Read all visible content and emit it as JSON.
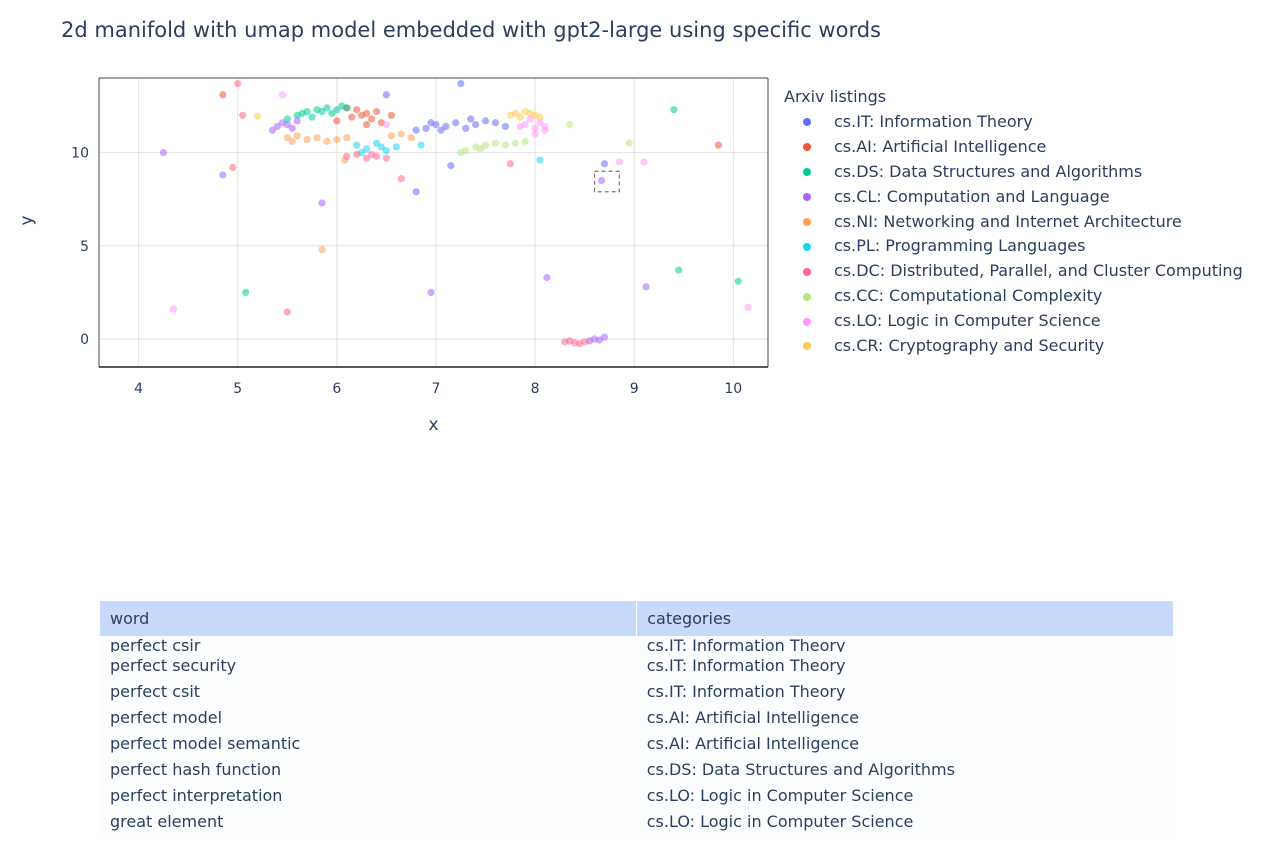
{
  "title": "2d manifold with umap model embedded with gpt2-large using specific words",
  "legend": {
    "title": "Arxiv listings",
    "items": [
      {
        "label": "cs.IT: Information Theory",
        "color": "#636efa"
      },
      {
        "label": "cs.AI: Artificial Intelligence",
        "color": "#ef553b"
      },
      {
        "label": "cs.DS: Data Structures and Algorithms",
        "color": "#00cc96"
      },
      {
        "label": "cs.CL: Computation and Language",
        "color": "#ab63fa"
      },
      {
        "label": "cs.NI: Networking and Internet Architecture",
        "color": "#ffa15a"
      },
      {
        "label": "cs.PL: Programming Languages",
        "color": "#19d3f3"
      },
      {
        "label": "cs.DC: Distributed, Parallel, and Cluster Computing",
        "color": "#ff6692"
      },
      {
        "label": "cs.CC: Computational Complexity",
        "color": "#b6e880"
      },
      {
        "label": "cs.LO: Logic in Computer Science",
        "color": "#ff97ff"
      },
      {
        "label": "cs.CR: Cryptography and Security",
        "color": "#fecb52"
      }
    ]
  },
  "table": {
    "headers": [
      "word",
      "categories"
    ],
    "rows": [
      [
        "perfect csir",
        "cs.IT: Information Theory"
      ],
      [
        "perfect security",
        "cs.IT: Information Theory"
      ],
      [
        "perfect csit",
        "cs.IT: Information Theory"
      ],
      [
        "perfect model",
        "cs.AI: Artificial Intelligence"
      ],
      [
        "perfect model semantic",
        "cs.AI: Artificial Intelligence"
      ],
      [
        "perfect hash function",
        "cs.DS: Data Structures and Algorithms"
      ],
      [
        "perfect interpretation",
        "cs.LO: Logic in Computer Science"
      ],
      [
        "great element",
        "cs.LO: Logic in Computer Science"
      ]
    ]
  },
  "chart_data": {
    "type": "scatter",
    "title": "2d manifold with umap model embedded with gpt2-large using specific words",
    "xlabel": "x",
    "ylabel": "y",
    "xlim": [
      3.6,
      10.35
    ],
    "ylim": [
      -1.5,
      14
    ],
    "xticks": [
      4,
      5,
      6,
      7,
      8,
      9,
      10
    ],
    "yticks": [
      0,
      5,
      10
    ],
    "grid": true,
    "legend_position": "right",
    "selection_box": {
      "x": [
        8.6,
        8.85
      ],
      "y": [
        7.9,
        9.0
      ]
    },
    "series": [
      {
        "name": "cs.IT: Information Theory",
        "color": "#636efa",
        "points": [
          [
            6.9,
            11.3
          ],
          [
            7.0,
            11.5
          ],
          [
            7.1,
            11.4
          ],
          [
            7.2,
            11.6
          ],
          [
            7.3,
            11.3
          ],
          [
            7.4,
            11.5
          ],
          [
            7.5,
            11.7
          ],
          [
            7.6,
            11.6
          ],
          [
            6.8,
            11.2
          ],
          [
            7.7,
            11.4
          ],
          [
            6.5,
            13.1
          ],
          [
            7.25,
            13.7
          ],
          [
            7.15,
            9.3
          ],
          [
            6.95,
            11.6
          ],
          [
            8.7,
            9.4
          ],
          [
            6.8,
            7.9
          ],
          [
            7.35,
            11.8
          ],
          [
            7.05,
            11.2
          ]
        ]
      },
      {
        "name": "cs.AI: Artificial Intelligence",
        "color": "#ef553b",
        "points": [
          [
            6.2,
            12.3
          ],
          [
            6.3,
            12.1
          ],
          [
            6.35,
            11.8
          ],
          [
            6.25,
            12.0
          ],
          [
            6.4,
            12.2
          ],
          [
            6.45,
            11.6
          ],
          [
            6.1,
            12.4
          ],
          [
            6.15,
            11.9
          ],
          [
            6.3,
            11.5
          ],
          [
            9.85,
            10.4
          ],
          [
            4.85,
            13.1
          ],
          [
            6.55,
            12.0
          ],
          [
            6.0,
            11.7
          ]
        ]
      },
      {
        "name": "cs.DS: Data Structures and Algorithms",
        "color": "#00cc96",
        "points": [
          [
            5.6,
            12.0
          ],
          [
            5.7,
            12.2
          ],
          [
            5.8,
            12.3
          ],
          [
            5.9,
            12.4
          ],
          [
            6.0,
            12.3
          ],
          [
            6.1,
            12.4
          ],
          [
            5.5,
            11.8
          ],
          [
            5.65,
            12.1
          ],
          [
            5.85,
            12.2
          ],
          [
            6.05,
            12.5
          ],
          [
            9.4,
            12.3
          ],
          [
            9.45,
            3.7
          ],
          [
            10.05,
            3.1
          ],
          [
            5.08,
            2.5
          ],
          [
            5.75,
            11.9
          ],
          [
            5.95,
            12.1
          ]
        ]
      },
      {
        "name": "cs.CL: Computation and Language",
        "color": "#ab63fa",
        "points": [
          [
            5.35,
            11.2
          ],
          [
            5.4,
            11.4
          ],
          [
            5.45,
            11.6
          ],
          [
            5.5,
            11.5
          ],
          [
            5.55,
            11.3
          ],
          [
            5.6,
            11.7
          ],
          [
            4.25,
            10.0
          ],
          [
            4.85,
            8.8
          ],
          [
            5.85,
            7.3
          ],
          [
            8.12,
            3.3
          ],
          [
            6.95,
            2.5
          ],
          [
            9.12,
            2.8
          ],
          [
            8.67,
            8.5
          ],
          [
            8.55,
            -0.1
          ],
          [
            8.7,
            0.1
          ],
          [
            8.6,
            0.0
          ],
          [
            8.65,
            -0.05
          ]
        ]
      },
      {
        "name": "cs.NI: Networking and Internet Architecture",
        "color": "#ffa15a",
        "points": [
          [
            5.5,
            10.8
          ],
          [
            5.6,
            10.9
          ],
          [
            5.7,
            10.7
          ],
          [
            5.8,
            10.8
          ],
          [
            5.9,
            10.6
          ],
          [
            6.0,
            10.7
          ],
          [
            6.1,
            10.8
          ],
          [
            5.55,
            10.6
          ],
          [
            5.85,
            4.8
          ],
          [
            6.08,
            9.6
          ],
          [
            6.55,
            10.9
          ],
          [
            6.65,
            11.0
          ],
          [
            6.75,
            10.8
          ]
        ]
      },
      {
        "name": "cs.PL: Programming Languages",
        "color": "#19d3f3",
        "points": [
          [
            6.2,
            10.4
          ],
          [
            6.3,
            10.2
          ],
          [
            6.4,
            10.5
          ],
          [
            6.5,
            10.1
          ],
          [
            6.6,
            10.3
          ],
          [
            6.25,
            10.0
          ],
          [
            6.45,
            10.3
          ],
          [
            8.05,
            9.6
          ],
          [
            6.85,
            10.4
          ]
        ]
      },
      {
        "name": "cs.DC: Distributed, Parallel, and Cluster Computing",
        "color": "#ff6692",
        "points": [
          [
            6.1,
            9.8
          ],
          [
            6.2,
            9.9
          ],
          [
            6.3,
            9.7
          ],
          [
            6.4,
            9.8
          ],
          [
            6.5,
            9.7
          ],
          [
            6.35,
            9.9
          ],
          [
            4.95,
            9.2
          ],
          [
            5.05,
            12.0
          ],
          [
            5.0,
            13.7
          ],
          [
            5.5,
            1.45
          ],
          [
            8.3,
            -0.15
          ],
          [
            8.4,
            -0.2
          ],
          [
            8.5,
            -0.15
          ],
          [
            8.45,
            -0.25
          ],
          [
            6.65,
            8.6
          ],
          [
            7.75,
            9.4
          ],
          [
            8.35,
            -0.1
          ]
        ]
      },
      {
        "name": "cs.CC: Computational Complexity",
        "color": "#b6e880",
        "points": [
          [
            7.3,
            10.1
          ],
          [
            7.4,
            10.3
          ],
          [
            7.5,
            10.4
          ],
          [
            7.6,
            10.5
          ],
          [
            7.7,
            10.4
          ],
          [
            7.8,
            10.5
          ],
          [
            7.9,
            10.6
          ],
          [
            7.25,
            10.0
          ],
          [
            7.45,
            10.2
          ],
          [
            8.95,
            10.5
          ],
          [
            8.35,
            11.5
          ]
        ]
      },
      {
        "name": "cs.LO: Logic in Computer Science",
        "color": "#ff97ff",
        "points": [
          [
            7.9,
            11.5
          ],
          [
            8.0,
            11.3
          ],
          [
            8.05,
            11.6
          ],
          [
            8.1,
            11.2
          ],
          [
            7.95,
            11.8
          ],
          [
            8.0,
            11.0
          ],
          [
            8.1,
            11.4
          ],
          [
            7.85,
            11.4
          ],
          [
            5.45,
            13.1
          ],
          [
            10.15,
            1.7
          ],
          [
            4.35,
            1.6
          ],
          [
            9.1,
            9.5
          ],
          [
            8.85,
            9.5
          ],
          [
            6.5,
            11.5
          ]
        ]
      },
      {
        "name": "cs.CR: Cryptography and Security",
        "color": "#fecb52",
        "points": [
          [
            7.8,
            12.1
          ],
          [
            7.9,
            12.2
          ],
          [
            8.0,
            12.0
          ],
          [
            7.85,
            11.9
          ],
          [
            7.95,
            12.1
          ],
          [
            8.05,
            11.9
          ],
          [
            5.2,
            11.95
          ],
          [
            7.75,
            12.0
          ]
        ]
      }
    ]
  }
}
